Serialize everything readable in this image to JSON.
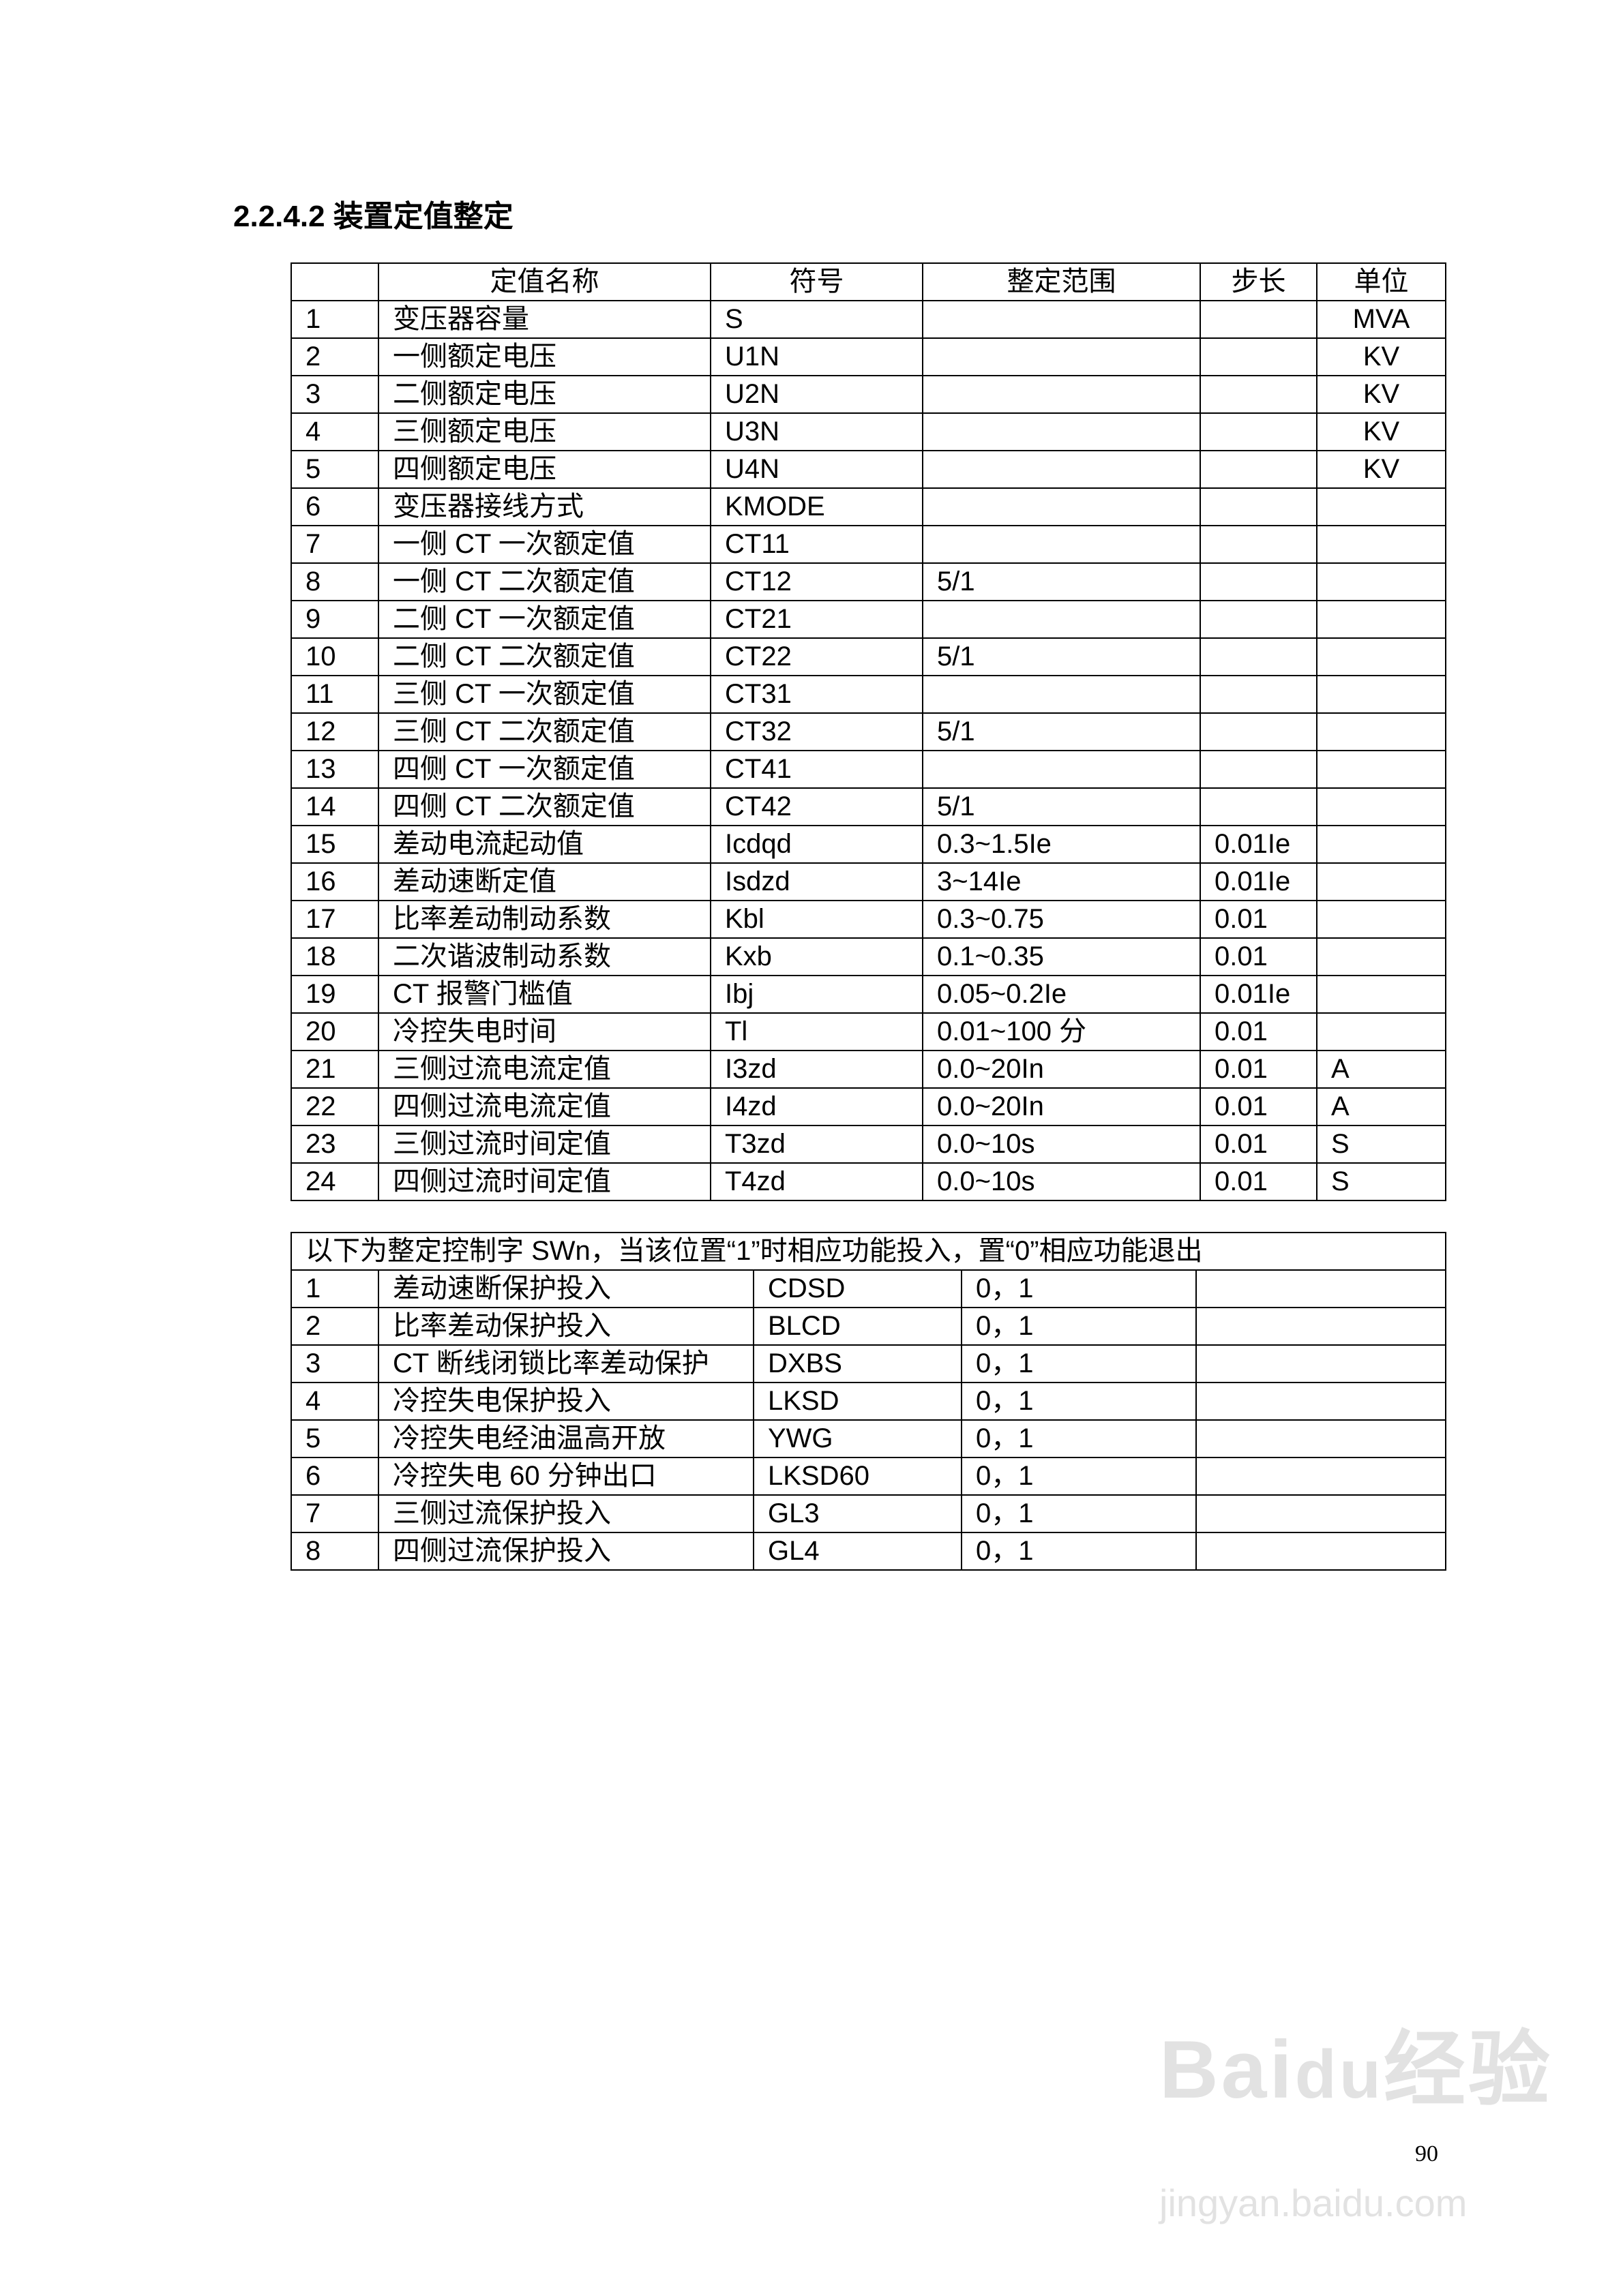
{
  "title": "2.2.4.2 装置定值整定",
  "table": {
    "headers": [
      "",
      "定值名称",
      "符号",
      "整定范围",
      "步长",
      "单位"
    ],
    "rows": [
      [
        "1",
        "变压器容量",
        "S",
        "",
        "",
        "MVA"
      ],
      [
        "2",
        "一侧额定电压",
        "U1N",
        "",
        "",
        "KV"
      ],
      [
        "3",
        "二侧额定电压",
        "U2N",
        "",
        "",
        "KV"
      ],
      [
        "4",
        "三侧额定电压",
        "U3N",
        "",
        "",
        "KV"
      ],
      [
        "5",
        "四侧额定电压",
        "U4N",
        "",
        "",
        "KV"
      ],
      [
        "6",
        "变压器接线方式",
        "KMODE",
        "",
        "",
        ""
      ],
      [
        "7",
        "一侧 CT 一次额定值",
        "CT11",
        "",
        "",
        ""
      ],
      [
        "8",
        "一侧 CT 二次额定值",
        "CT12",
        "5/1",
        "",
        ""
      ],
      [
        "9",
        "二侧 CT 一次额定值",
        "CT21",
        "",
        "",
        ""
      ],
      [
        "10",
        "二侧 CT 二次额定值",
        "CT22",
        "5/1",
        "",
        ""
      ],
      [
        "11",
        "三侧 CT 一次额定值",
        "CT31",
        "",
        "",
        ""
      ],
      [
        "12",
        "三侧 CT 二次额定值",
        "CT32",
        "5/1",
        "",
        ""
      ],
      [
        "13",
        "四侧 CT 一次额定值",
        "CT41",
        "",
        "",
        ""
      ],
      [
        "14",
        "四侧 CT 二次额定值",
        "CT42",
        "5/1",
        "",
        ""
      ],
      [
        "15",
        "差动电流起动值",
        "Icdqd",
        "0.3~1.5Ie",
        "0.01Ie",
        ""
      ],
      [
        "16",
        "差动速断定值",
        "Isdzd",
        "3~14Ie",
        "0.01Ie",
        ""
      ],
      [
        "17",
        "比率差动制动系数",
        "Kbl",
        "0.3~0.75",
        "0.01",
        ""
      ],
      [
        "18",
        "二次谐波制动系数",
        "Kxb",
        "0.1~0.35",
        "0.01",
        ""
      ],
      [
        "19",
        "CT 报警门槛值",
        "Ibj",
        "0.05~0.2Ie",
        "0.01Ie",
        ""
      ],
      [
        "20",
        "冷控失电时间",
        "Tl",
        "0.01~100 分",
        "0.01",
        ""
      ],
      [
        "21",
        "三侧过流电流定值",
        "I3zd",
        "0.0~20In",
        "0.01",
        "A"
      ],
      [
        "22",
        "四侧过流电流定值",
        "I4zd",
        "0.0~20In",
        "0.01",
        "A"
      ],
      [
        "23",
        "三侧过流时间定值",
        "T3zd",
        "0.0~10s",
        "0.01",
        "S"
      ],
      [
        "24",
        "四侧过流时间定值",
        "T4zd",
        "0.0~10s",
        "0.01",
        "S"
      ]
    ]
  },
  "control_note": "以下为整定控制字 SWn，当该位置“1”时相应功能投入，置“0”相应功能退出",
  "control_rows": [
    [
      "1",
      "差动速断保护投入",
      "CDSD",
      "0，1",
      ""
    ],
    [
      "2",
      "比率差动保护投入",
      "BLCD",
      "0，1",
      ""
    ],
    [
      "3",
      "CT 断线闭锁比率差动保护",
      "DXBS",
      "0，1",
      ""
    ],
    [
      "4",
      "冷控失电保护投入",
      "LKSD",
      "0，1",
      ""
    ],
    [
      "5",
      "冷控失电经油温高开放",
      "YWG",
      "0，1",
      ""
    ],
    [
      "6",
      "冷控失电 60 分钟出口",
      "LKSD60",
      "0，1",
      ""
    ],
    [
      "7",
      "三侧过流保护投入",
      "GL3",
      "0，1",
      ""
    ],
    [
      "8",
      "四侧过流保护投入",
      "GL4",
      "0，1",
      ""
    ]
  ],
  "page_number": "90",
  "watermark": {
    "logo": "Baidu经验",
    "url": "jingyan.baidu.com"
  }
}
